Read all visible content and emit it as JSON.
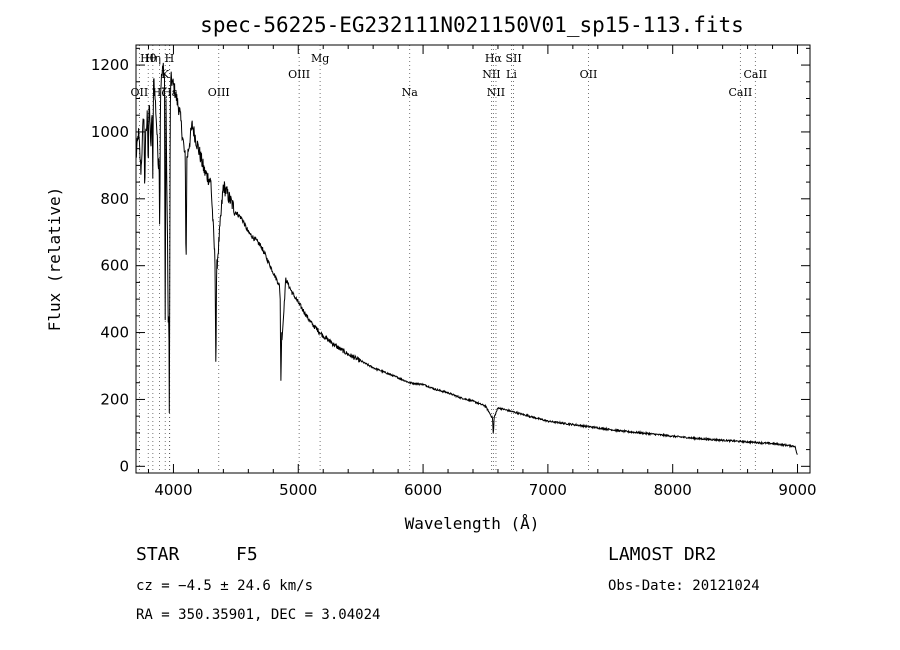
{
  "chart_data": {
    "type": "line",
    "title": "spec-56225-EG232111N021150V01_sp15-113.fits",
    "xlabel": "Wavelength (Å)",
    "ylabel": "Flux (relative)",
    "xlim": [
      3700,
      9100
    ],
    "ylim": [
      -20,
      1260
    ],
    "x_ticks": [
      4000,
      5000,
      6000,
      7000,
      8000,
      9000
    ],
    "y_ticks": [
      0,
      200,
      400,
      600,
      800,
      1000,
      1200
    ],
    "grid": false,
    "series": [
      {
        "x": [
          3700,
          3720,
          3740,
          3760,
          3780,
          3800,
          3820,
          3840,
          3860,
          3880,
          3900,
          3920,
          3940,
          3960,
          3970,
          3980,
          4000,
          4050,
          4100,
          4150,
          4200,
          4250,
          4300,
          4340,
          4400,
          4450,
          4500,
          4550,
          4600,
          4650,
          4700,
          4750,
          4800,
          4850,
          4870,
          4900,
          4950,
          5000,
          5050,
          5100,
          5150,
          5200,
          5300,
          5400,
          5500,
          5600,
          5700,
          5800,
          5890,
          6000,
          6100,
          6200,
          6300,
          6400,
          6500,
          6563,
          6600,
          6700,
          6800,
          6900,
          7000,
          7200,
          7400,
          7600,
          7800,
          8000,
          8200,
          8400,
          8600,
          8800,
          8980,
          9000
        ],
        "y": [
          920,
          1000,
          880,
          1050,
          980,
          1120,
          960,
          1180,
          1060,
          900,
          1150,
          1200,
          1100,
          380,
          1000,
          1160,
          1140,
          1060,
          900,
          1020,
          950,
          880,
          850,
          560,
          840,
          800,
          760,
          740,
          700,
          680,
          660,
          620,
          580,
          540,
          380,
          560,
          520,
          490,
          460,
          430,
          410,
          390,
          360,
          335,
          315,
          295,
          280,
          265,
          250,
          245,
          230,
          220,
          205,
          195,
          180,
          140,
          175,
          165,
          155,
          145,
          135,
          125,
          115,
          105,
          98,
          90,
          83,
          78,
          73,
          68,
          60,
          30
        ],
        "absorption_lines": [
          {
            "x": 3968,
            "depth": 780
          },
          {
            "x": 3934,
            "depth": 700
          },
          {
            "x": 3890,
            "depth": 320
          },
          {
            "x": 3835,
            "depth": 280
          },
          {
            "x": 3798,
            "depth": 220
          },
          {
            "x": 3770,
            "depth": 200
          },
          {
            "x": 4101,
            "depth": 330
          },
          {
            "x": 4340,
            "depth": 300
          },
          {
            "x": 4861,
            "depth": 200
          },
          {
            "x": 6563,
            "depth": 50
          }
        ]
      }
    ],
    "lines": [
      {
        "label": "OII",
        "x": 3727,
        "row": 3
      },
      {
        "label": "Hθ",
        "x": 3798,
        "row": 1
      },
      {
        "label": "Hη",
        "x": 3835,
        "row": 1
      },
      {
        "label": "Hζ",
        "x": 3889,
        "row": 3
      },
      {
        "label": "Hε",
        "x": 3970,
        "row": 3
      },
      {
        "label": "H",
        "x": 3968,
        "row": 1
      },
      {
        "label": "K",
        "x": 3934,
        "row": 2
      },
      {
        "label": "OIII",
        "x": 4363,
        "row": 3
      },
      {
        "label": "Mg",
        "x": 5175,
        "row": 1
      },
      {
        "label": "OIII",
        "x": 5007,
        "row": 2
      },
      {
        "label": "Na",
        "x": 5893,
        "row": 3
      },
      {
        "label": "Hα",
        "x": 6563,
        "row": 1
      },
      {
        "label": "NII",
        "x": 6548,
        "row": 2
      },
      {
        "label": "Li",
        "x": 6708,
        "row": 2
      },
      {
        "label": "NII",
        "x": 6584,
        "row": 3
      },
      {
        "label": "OII",
        "x": 7325,
        "row": 2
      },
      {
        "label": "SII",
        "x": 6725,
        "row": 1
      },
      {
        "label": "CaII",
        "x": 8662,
        "row": 2
      },
      {
        "label": "CaII",
        "x": 8542,
        "row": 3
      }
    ]
  },
  "info": {
    "class": "STAR",
    "subclass": "F5",
    "survey": "LAMOST DR2",
    "cz": "cz = −4.5 ± 24.6 km/s",
    "obs_date": "Obs-Date: 20121024",
    "coords": "RA = 350.35901, DEC =   3.04024"
  }
}
